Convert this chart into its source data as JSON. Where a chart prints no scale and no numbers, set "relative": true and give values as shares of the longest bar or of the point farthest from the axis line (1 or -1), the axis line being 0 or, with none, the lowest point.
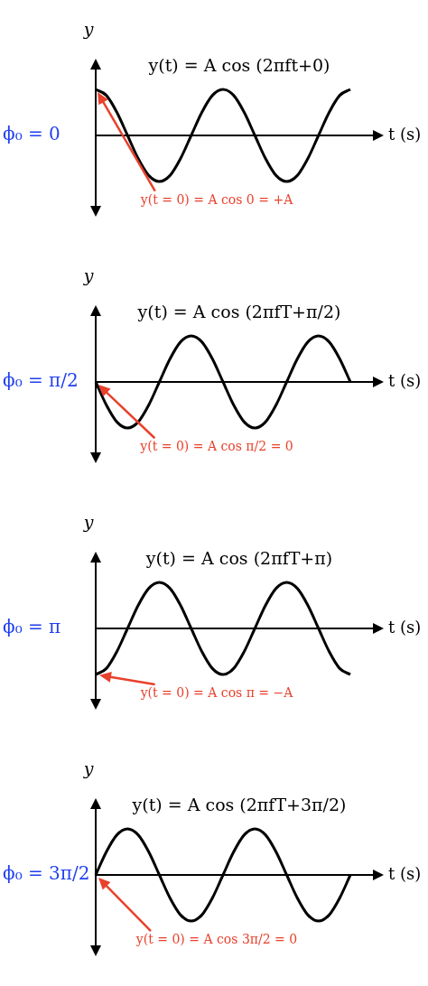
{
  "chart_data": [
    {
      "type": "line",
      "title": "y(t) = A cos (2πft+0)",
      "xlabel": "t (s)",
      "ylabel": "y",
      "annotations": [
        "ϕ₀ = 0",
        "y(t = 0) = A cos 0 = +A"
      ],
      "categories": [
        null,
        null,
        null,
        null,
        null,
        null,
        null,
        null,
        null,
        null,
        null,
        null,
        null,
        null,
        null,
        null,
        null,
        null,
        null,
        null,
        null,
        null,
        null,
        null,
        null
      ],
      "values": [
        1,
        0.87,
        0.5,
        0,
        -0.5,
        -0.87,
        -1,
        -0.87,
        -0.5,
        0,
        0.5,
        0.87,
        1,
        0.87,
        0.5,
        0,
        -0.5,
        -0.87,
        -1,
        -0.87,
        -0.5,
        0,
        0.5,
        0.87,
        1
      ],
      "color": "#000000",
      "relative": true,
      "marker": "none"
    },
    {
      "type": "line",
      "title": "y(t) = A cos (2πfT+π/2)",
      "xlabel": "t (s)",
      "ylabel": "y",
      "annotations": [
        "ϕ₀ = π/2",
        "y(t = 0) = A cos π/2 = 0"
      ],
      "categories": [
        null,
        null,
        null,
        null,
        null,
        null,
        null,
        null,
        null,
        null,
        null,
        null,
        null,
        null,
        null,
        null,
        null,
        null,
        null,
        null,
        null,
        null,
        null,
        null,
        null
      ],
      "values": [
        0,
        -0.5,
        -0.87,
        -1,
        -0.87,
        -0.5,
        0,
        0.5,
        0.87,
        1,
        0.87,
        0.5,
        0,
        -0.5,
        -0.87,
        -1,
        -0.87,
        -0.5,
        0,
        0.5,
        0.87,
        1,
        0.87,
        0.5,
        0
      ],
      "color": "#000000",
      "relative": true,
      "marker": "none"
    },
    {
      "type": "line",
      "title": "y(t) = A cos (2πfT+π)",
      "xlabel": "t (s)",
      "ylabel": "y",
      "annotations": [
        "ϕ₀ = π",
        "y(t = 0) = A cos π = −A"
      ],
      "categories": [
        null,
        null,
        null,
        null,
        null,
        null,
        null,
        null,
        null,
        null,
        null,
        null,
        null,
        null,
        null,
        null,
        null,
        null,
        null,
        null,
        null,
        null,
        null,
        null,
        null
      ],
      "values": [
        -1,
        -0.87,
        -0.5,
        0,
        0.5,
        0.87,
        1,
        0.87,
        0.5,
        0,
        -0.5,
        -0.87,
        -1,
        -0.87,
        -0.5,
        0,
        0.5,
        0.87,
        1,
        0.87,
        0.5,
        0,
        -0.5,
        -0.87,
        -1
      ],
      "color": "#000000",
      "relative": true,
      "marker": "none"
    },
    {
      "type": "line",
      "title": "y(t) = A cos (2πfT+3π/2)",
      "xlabel": "t (s)",
      "ylabel": "y",
      "annotations": [
        "ϕ₀ = 3π/2",
        "y(t = 0) = A cos 3π/2 = 0"
      ],
      "categories": [
        null,
        null,
        null,
        null,
        null,
        null,
        null,
        null,
        null,
        null,
        null,
        null,
        null,
        null,
        null,
        null,
        null,
        null,
        null,
        null,
        null,
        null,
        null,
        null,
        null
      ],
      "values": [
        0,
        0.5,
        0.87,
        1,
        0.87,
        0.5,
        0,
        -0.5,
        -0.87,
        -1,
        -0.87,
        -0.5,
        0,
        0.5,
        0.87,
        1,
        0.87,
        0.5,
        0,
        -0.5,
        -0.87,
        -1,
        -0.87,
        -0.5,
        0
      ],
      "color": "#000000",
      "relative": true,
      "marker": "none"
    }
  ]
}
